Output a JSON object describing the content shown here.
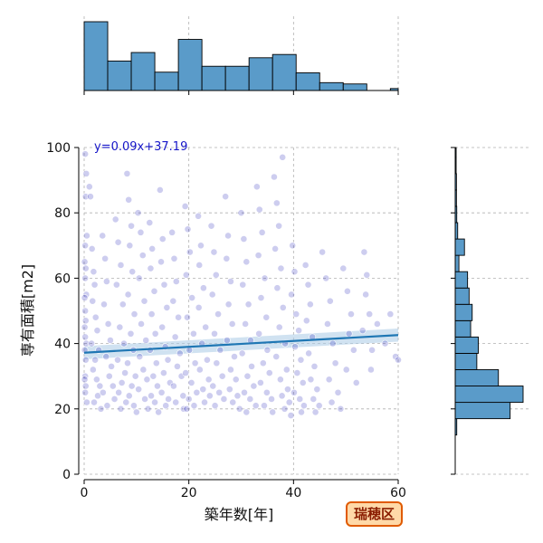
{
  "chart_data": {
    "type": "scatter",
    "xlabel": "築年数[年]",
    "ylabel": "専有面積[m2]",
    "xlim": [
      0,
      60
    ],
    "ylim": [
      0,
      100
    ],
    "xticks": [
      0,
      20,
      40,
      60
    ],
    "yticks": [
      0,
      20,
      40,
      60,
      80,
      100
    ],
    "grid": true,
    "annotation": "y=0.09x+37.19",
    "regression": {
      "slope": 0.09,
      "intercept": 37.19,
      "ci_halfwidth_at_ends": 2.0
    },
    "region_badge": "瑞穂区",
    "colors": {
      "points": "#1a1ab4",
      "regression_line": "#1f77b4",
      "confidence_band": "#a9cbe6",
      "histogram": "#5a9bc9",
      "badge_fill": "#ffd9a8",
      "badge_border": "#e05a00"
    },
    "marginal_x_histogram": {
      "bin_edges": [
        0,
        4.5,
        9,
        13.5,
        18,
        22.5,
        27,
        31.5,
        36,
        40.5,
        45,
        49.5,
        54,
        58.5,
        60
      ],
      "counts": [
        105,
        45,
        58,
        28,
        78,
        37,
        37,
        50,
        55,
        27,
        12,
        10,
        0,
        3
      ]
    },
    "marginal_y_histogram": {
      "bin_edges": [
        12,
        17,
        22,
        27,
        32,
        37,
        42,
        47,
        52,
        57,
        62,
        67,
        72,
        77,
        82,
        87,
        92,
        97,
        100
      ],
      "counts": [
        5,
        178,
        220,
        140,
        70,
        75,
        50,
        55,
        45,
        40,
        12,
        30,
        8,
        5,
        4,
        4,
        3,
        3
      ]
    },
    "points": [
      [
        0.2,
        98
      ],
      [
        0.4,
        92
      ],
      [
        0.3,
        85
      ],
      [
        0.5,
        73
      ],
      [
        0.2,
        70
      ],
      [
        0.1,
        65
      ],
      [
        0.3,
        63
      ],
      [
        0.2,
        60
      ],
      [
        0.4,
        55
      ],
      [
        0.1,
        54
      ],
      [
        0.2,
        50
      ],
      [
        0.3,
        47
      ],
      [
        0.1,
        45
      ],
      [
        0.2,
        42
      ],
      [
        0.4,
        40
      ],
      [
        0.1,
        38
      ],
      [
        0.3,
        35
      ],
      [
        0.2,
        30
      ],
      [
        0.1,
        29
      ],
      [
        0.3,
        27
      ],
      [
        0.2,
        25
      ],
      [
        0.5,
        22
      ],
      [
        1,
        88
      ],
      [
        1.2,
        85
      ],
      [
        1.5,
        69
      ],
      [
        1.8,
        62
      ],
      [
        2,
        58
      ],
      [
        1.6,
        53
      ],
      [
        2.2,
        48
      ],
      [
        2.5,
        44
      ],
      [
        1.4,
        40
      ],
      [
        2.8,
        38
      ],
      [
        2.1,
        35
      ],
      [
        1.7,
        32
      ],
      [
        2.4,
        29
      ],
      [
        3,
        27
      ],
      [
        2.6,
        24
      ],
      [
        1.9,
        22
      ],
      [
        3.2,
        20
      ],
      [
        3.5,
        73
      ],
      [
        4,
        66
      ],
      [
        4.3,
        59
      ],
      [
        3.8,
        52
      ],
      [
        4.6,
        46
      ],
      [
        5,
        41
      ],
      [
        4.2,
        36
      ],
      [
        5.2,
        33
      ],
      [
        4.8,
        30
      ],
      [
        5.5,
        27
      ],
      [
        3.6,
        25
      ],
      [
        5.8,
        23
      ],
      [
        4.4,
        21
      ],
      [
        6,
        78
      ],
      [
        6.5,
        71
      ],
      [
        7,
        64
      ],
      [
        6.2,
        58
      ],
      [
        7.4,
        52
      ],
      [
        6.8,
        45
      ],
      [
        7.6,
        40
      ],
      [
        6.4,
        35
      ],
      [
        7.8,
        31
      ],
      [
        7.2,
        28
      ],
      [
        6.6,
        25
      ],
      [
        8,
        22
      ],
      [
        7,
        20
      ],
      [
        8.2,
        92
      ],
      [
        8.5,
        84
      ],
      [
        9,
        76
      ],
      [
        8.7,
        70
      ],
      [
        9.2,
        62
      ],
      [
        8.4,
        55
      ],
      [
        9.6,
        49
      ],
      [
        8.9,
        43
      ],
      [
        9.4,
        38
      ],
      [
        8.3,
        34
      ],
      [
        9.8,
        30
      ],
      [
        9.1,
        27
      ],
      [
        8.6,
        24
      ],
      [
        9.5,
        21
      ],
      [
        10,
        19
      ],
      [
        10.3,
        80
      ],
      [
        10.8,
        74
      ],
      [
        11.2,
        67
      ],
      [
        10.5,
        60
      ],
      [
        11.5,
        53
      ],
      [
        10.9,
        46
      ],
      [
        11.8,
        41
      ],
      [
        10.6,
        36
      ],
      [
        11.3,
        32
      ],
      [
        12,
        29
      ],
      [
        10.4,
        26
      ],
      [
        11.6,
        23
      ],
      [
        12.2,
        20
      ],
      [
        12.5,
        77
      ],
      [
        13,
        69
      ],
      [
        12.7,
        63
      ],
      [
        13.4,
        56
      ],
      [
        12.9,
        49
      ],
      [
        13.6,
        43
      ],
      [
        12.6,
        38
      ],
      [
        13.8,
        34
      ],
      [
        13.2,
        30
      ],
      [
        14,
        27
      ],
      [
        12.8,
        24
      ],
      [
        13.5,
        22
      ],
      [
        14.2,
        19
      ],
      [
        14.5,
        87
      ],
      [
        15,
        72
      ],
      [
        14.7,
        65
      ],
      [
        15.3,
        58
      ],
      [
        15.8,
        51
      ],
      [
        14.9,
        45
      ],
      [
        15.5,
        39
      ],
      [
        16,
        35
      ],
      [
        15.2,
        31
      ],
      [
        16.4,
        28
      ],
      [
        14.8,
        25
      ],
      [
        16.1,
        23
      ],
      [
        15.6,
        21
      ],
      [
        16.8,
        74
      ],
      [
        17.2,
        66
      ],
      [
        17.6,
        59
      ],
      [
        17,
        53
      ],
      [
        18,
        48
      ],
      [
        17.4,
        42
      ],
      [
        18.3,
        37
      ],
      [
        17.8,
        33
      ],
      [
        18.6,
        30
      ],
      [
        17.1,
        27
      ],
      [
        18.9,
        24
      ],
      [
        17.5,
        22
      ],
      [
        19,
        20
      ],
      [
        19.3,
        82
      ],
      [
        19.8,
        75
      ],
      [
        20.2,
        68
      ],
      [
        19.5,
        61
      ],
      [
        20.6,
        54
      ],
      [
        19.7,
        48
      ],
      [
        20.9,
        43
      ],
      [
        20.1,
        38
      ],
      [
        21.2,
        34
      ],
      [
        19.4,
        31
      ],
      [
        20.5,
        28
      ],
      [
        21.5,
        25
      ],
      [
        20,
        23
      ],
      [
        21,
        21
      ],
      [
        19.6,
        20
      ],
      [
        21.8,
        79
      ],
      [
        22.3,
        70
      ],
      [
        22,
        64
      ],
      [
        22.8,
        57
      ],
      [
        21.9,
        51
      ],
      [
        23.2,
        45
      ],
      [
        22.5,
        40
      ],
      [
        23.5,
        35
      ],
      [
        22.1,
        32
      ],
      [
        23.8,
        29
      ],
      [
        22.7,
        26
      ],
      [
        24,
        24
      ],
      [
        23,
        22
      ],
      [
        24.3,
        76
      ],
      [
        24.8,
        68
      ],
      [
        25.2,
        61
      ],
      [
        24.5,
        55
      ],
      [
        25.6,
        49
      ],
      [
        24.9,
        43
      ],
      [
        26,
        38
      ],
      [
        25.3,
        34
      ],
      [
        26.4,
        30
      ],
      [
        24.6,
        27
      ],
      [
        25.8,
        25
      ],
      [
        26.7,
        23
      ],
      [
        25,
        21
      ],
      [
        27,
        85
      ],
      [
        27.5,
        73
      ],
      [
        27.2,
        66
      ],
      [
        28,
        59
      ],
      [
        27.6,
        52
      ],
      [
        28.3,
        46
      ],
      [
        27.3,
        41
      ],
      [
        28.7,
        36
      ],
      [
        28,
        32
      ],
      [
        29,
        29
      ],
      [
        27.8,
        26
      ],
      [
        29.3,
        24
      ],
      [
        28.4,
        22
      ],
      [
        29.7,
        20
      ],
      [
        30,
        80
      ],
      [
        30.5,
        72
      ],
      [
        31,
        65
      ],
      [
        30.3,
        58
      ],
      [
        31.4,
        52
      ],
      [
        30.8,
        46
      ],
      [
        31.8,
        41
      ],
      [
        30.2,
        37
      ],
      [
        32,
        33
      ],
      [
        31.2,
        30
      ],
      [
        32.4,
        27
      ],
      [
        30.6,
        25
      ],
      [
        31.7,
        23
      ],
      [
        32.8,
        21
      ],
      [
        31,
        19
      ],
      [
        33,
        88
      ],
      [
        33.5,
        81
      ],
      [
        34,
        74
      ],
      [
        33.3,
        67
      ],
      [
        34.5,
        60
      ],
      [
        33.8,
        54
      ],
      [
        34.8,
        48
      ],
      [
        33.4,
        43
      ],
      [
        35,
        38
      ],
      [
        34.2,
        34
      ],
      [
        35.4,
        31
      ],
      [
        33.7,
        28
      ],
      [
        34.9,
        25
      ],
      [
        35.8,
        23
      ],
      [
        34.4,
        21
      ],
      [
        36,
        19
      ],
      [
        36.3,
        91
      ],
      [
        36.8,
        83
      ],
      [
        37.2,
        76
      ],
      [
        36.5,
        69
      ],
      [
        37.6,
        63
      ],
      [
        36.9,
        57
      ],
      [
        38,
        51
      ],
      [
        37.3,
        45
      ],
      [
        38.4,
        40
      ],
      [
        36.7,
        36
      ],
      [
        38.7,
        32
      ],
      [
        37.5,
        29
      ],
      [
        38.9,
        26
      ],
      [
        37.8,
        24
      ],
      [
        39.2,
        22
      ],
      [
        38.3,
        20
      ],
      [
        39.5,
        18
      ],
      [
        37.9,
        97
      ],
      [
        39.8,
        70
      ],
      [
        40.2,
        62
      ],
      [
        39.6,
        55
      ],
      [
        40.5,
        49
      ],
      [
        41,
        44
      ],
      [
        40.3,
        39
      ],
      [
        41.4,
        35
      ],
      [
        40.7,
        31
      ],
      [
        41.8,
        28
      ],
      [
        40.1,
        25
      ],
      [
        41.2,
        23
      ],
      [
        42,
        21
      ],
      [
        41.5,
        19
      ],
      [
        42.3,
        64
      ],
      [
        42.8,
        58
      ],
      [
        43.2,
        52
      ],
      [
        42.5,
        47
      ],
      [
        43.6,
        42
      ],
      [
        42.9,
        37
      ],
      [
        44,
        33
      ],
      [
        43.3,
        29
      ],
      [
        44.5,
        26
      ],
      [
        43.8,
        23
      ],
      [
        44.9,
        21
      ],
      [
        44.2,
        19
      ],
      [
        45.5,
        68
      ],
      [
        46.2,
        60
      ],
      [
        47,
        53
      ],
      [
        46.5,
        46
      ],
      [
        47.5,
        40
      ],
      [
        48,
        34
      ],
      [
        46.8,
        29
      ],
      [
        48.5,
        25
      ],
      [
        47.3,
        22
      ],
      [
        49,
        20
      ],
      [
        49.5,
        63
      ],
      [
        50.3,
        56
      ],
      [
        51,
        49
      ],
      [
        50.6,
        43
      ],
      [
        51.5,
        38
      ],
      [
        50.1,
        32
      ],
      [
        52,
        28
      ],
      [
        53.5,
        68
      ],
      [
        54,
        61
      ],
      [
        53.8,
        55
      ],
      [
        54.5,
        49
      ],
      [
        53.2,
        44
      ],
      [
        55,
        38
      ],
      [
        54.8,
        32
      ],
      [
        56,
        46
      ],
      [
        57.5,
        40
      ],
      [
        58.5,
        49
      ],
      [
        59.5,
        36
      ],
      [
        60,
        35
      ]
    ]
  }
}
